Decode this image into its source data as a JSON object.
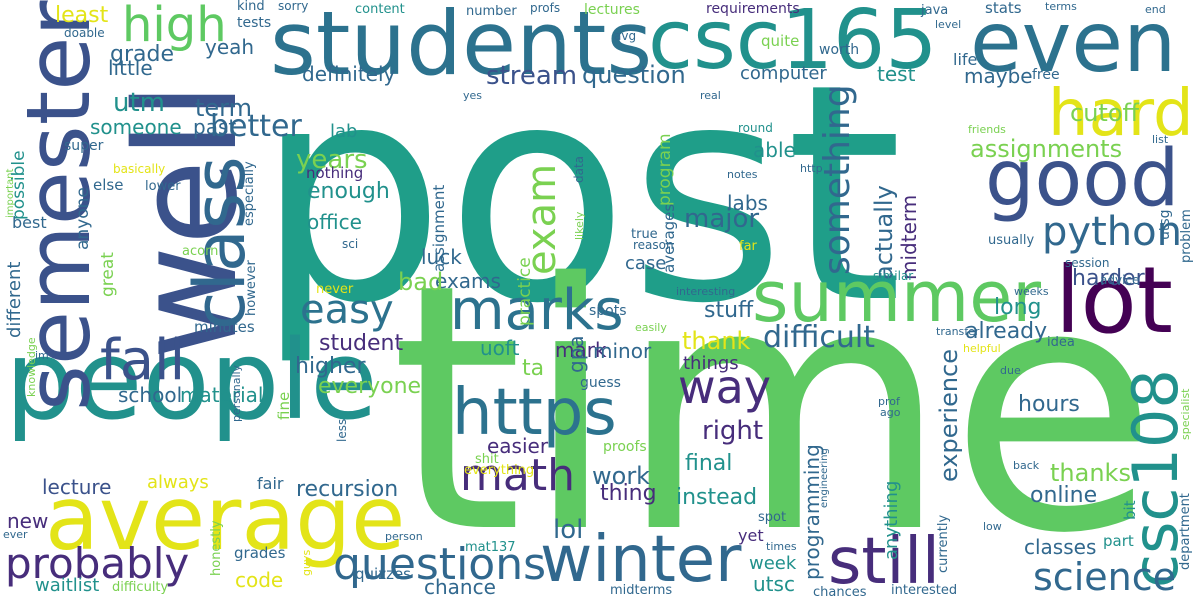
{
  "palette": {
    "yellow": "#e3e418",
    "lime": "#7ad151",
    "green": "#5ec962",
    "teal": "#21918c",
    "teal_dark": "#1f9e89",
    "blue": "#2c728e",
    "blue_dark": "#31688e",
    "indigo": "#3b528b",
    "purple": "#472d7b",
    "dark_purple": "#440154",
    "light_green": "#b5de2b"
  },
  "words": [
    {
      "text": "post",
      "color": "#1f9e89"
    },
    {
      "text": "time",
      "color": "#5ec962"
    },
    {
      "text": "well",
      "color": "#3b528b"
    },
    {
      "text": "students",
      "color": "#2c728e"
    },
    {
      "text": "csc165",
      "color": "#21918c"
    },
    {
      "text": "even",
      "color": "#2c728e"
    },
    {
      "text": "people",
      "color": "#21918c"
    },
    {
      "text": "average",
      "color": "#e3e418"
    },
    {
      "text": "semester",
      "color": "#3b528b"
    },
    {
      "text": "class",
      "color": "#31688e"
    },
    {
      "text": "good",
      "color": "#3b528b"
    },
    {
      "text": "lot",
      "color": "#440154"
    },
    {
      "text": "summer",
      "color": "#5ec962"
    },
    {
      "text": "hard",
      "color": "#e3e418"
    },
    {
      "text": "marks",
      "color": "#2c728e"
    },
    {
      "text": "fall",
      "color": "#3b528b"
    },
    {
      "text": "high",
      "color": "#5ec962"
    },
    {
      "text": "https",
      "color": "#2c728e"
    },
    {
      "text": "winter",
      "color": "#31688e"
    },
    {
      "text": "still",
      "color": "#472d7b"
    },
    {
      "text": "csc108",
      "color": "#21918c"
    },
    {
      "text": "probably",
      "color": "#472d7b"
    },
    {
      "text": "questions",
      "color": "#31688e"
    },
    {
      "text": "science",
      "color": "#31688e"
    },
    {
      "text": "math",
      "color": "#472d7b"
    },
    {
      "text": "way",
      "color": "#472d7b"
    },
    {
      "text": "easy",
      "color": "#2c728e"
    },
    {
      "text": "python",
      "color": "#31688e"
    },
    {
      "text": "exam",
      "color": "#7ad151"
    },
    {
      "text": "something",
      "color": "#31688e"
    },
    {
      "text": "difficult",
      "color": "#31688e"
    },
    {
      "text": "stream",
      "color": "#3b528b"
    },
    {
      "text": "question",
      "color": "#31688e"
    },
    {
      "text": "better",
      "color": "#31688e"
    },
    {
      "text": "least",
      "color": "#e3e418"
    },
    {
      "text": "grade",
      "color": "#31688e"
    },
    {
      "text": "little",
      "color": "#31688e"
    },
    {
      "text": "utm",
      "color": "#21918c"
    },
    {
      "text": "term",
      "color": "#31688e"
    },
    {
      "text": "someone",
      "color": "#21918c"
    },
    {
      "text": "past",
      "color": "#31688e"
    },
    {
      "text": "definitely",
      "color": "#31688e"
    },
    {
      "text": "yeah",
      "color": "#31688e"
    },
    {
      "text": "computer",
      "color": "#31688e"
    },
    {
      "text": "test",
      "color": "#21918c"
    },
    {
      "text": "maybe",
      "color": "#31688e"
    },
    {
      "text": "cutoff",
      "color": "#7ad151"
    },
    {
      "text": "assignments",
      "color": "#7ad151"
    },
    {
      "text": "years",
      "color": "#7ad151"
    },
    {
      "text": "enough",
      "color": "#21918c"
    },
    {
      "text": "office",
      "color": "#21918c"
    },
    {
      "text": "lab",
      "color": "#21918c"
    },
    {
      "text": "nothing",
      "color": "#472d7b"
    },
    {
      "text": "able",
      "color": "#21918c"
    },
    {
      "text": "labs",
      "color": "#31688e"
    },
    {
      "text": "major",
      "color": "#31688e"
    },
    {
      "text": "actually",
      "color": "#31688e"
    },
    {
      "text": "midterm",
      "color": "#472d7b"
    },
    {
      "text": "experience",
      "color": "#31688e"
    },
    {
      "text": "harder",
      "color": "#3b528b"
    },
    {
      "text": "long",
      "color": "#21918c"
    },
    {
      "text": "already",
      "color": "#31688e"
    },
    {
      "text": "hours",
      "color": "#31688e"
    },
    {
      "text": "thanks",
      "color": "#7ad151"
    },
    {
      "text": "online",
      "color": "#31688e"
    },
    {
      "text": "classes",
      "color": "#31688e"
    },
    {
      "text": "right",
      "color": "#472d7b"
    },
    {
      "text": "final",
      "color": "#21918c"
    },
    {
      "text": "instead",
      "color": "#21918c"
    },
    {
      "text": "thank",
      "color": "#e3e418"
    },
    {
      "text": "stuff",
      "color": "#31688e"
    },
    {
      "text": "things",
      "color": "#472d7b"
    },
    {
      "text": "work",
      "color": "#31688e"
    },
    {
      "text": "thing",
      "color": "#472d7b"
    },
    {
      "text": "lol",
      "color": "#31688e"
    },
    {
      "text": "code",
      "color": "#e3e418"
    },
    {
      "text": "chance",
      "color": "#31688e"
    },
    {
      "text": "recursion",
      "color": "#31688e"
    },
    {
      "text": "easier",
      "color": "#472d7b"
    },
    {
      "text": "exams",
      "color": "#31688e"
    },
    {
      "text": "luck",
      "color": "#31688e"
    },
    {
      "text": "bad",
      "color": "#7ad151"
    },
    {
      "text": "higher",
      "color": "#31688e"
    },
    {
      "text": "student",
      "color": "#472d7b"
    },
    {
      "text": "everyone",
      "color": "#7ad151"
    },
    {
      "text": "school",
      "color": "#31688e"
    },
    {
      "text": "material",
      "color": "#21918c"
    },
    {
      "text": "always",
      "color": "#e3e418"
    },
    {
      "text": "lecture",
      "color": "#3b528b"
    },
    {
      "text": "new",
      "color": "#472d7b"
    },
    {
      "text": "uoft",
      "color": "#21918c"
    },
    {
      "text": "mark",
      "color": "#472d7b"
    },
    {
      "text": "ta",
      "color": "#7ad151"
    },
    {
      "text": "gpa",
      "color": "#31688e"
    },
    {
      "text": "minor",
      "color": "#31688e"
    },
    {
      "text": "case",
      "color": "#31688e"
    },
    {
      "text": "week",
      "color": "#21918c"
    },
    {
      "text": "utsc",
      "color": "#21918c"
    },
    {
      "text": "quizzes",
      "color": "#31688e"
    },
    {
      "text": "waitlist",
      "color": "#21918c"
    },
    {
      "text": "grades",
      "color": "#31688e"
    },
    {
      "text": "minutes",
      "color": "#31688e"
    },
    {
      "text": "fair",
      "color": "#31688e"
    },
    {
      "text": "yet",
      "color": "#472d7b"
    },
    {
      "text": "part",
      "color": "#21918c"
    },
    {
      "text": "kind",
      "color": "#31688e"
    },
    {
      "text": "sorry",
      "color": "#31688e"
    },
    {
      "text": "tests",
      "color": "#31688e"
    },
    {
      "text": "content",
      "color": "#21918c"
    },
    {
      "text": "number",
      "color": "#31688e"
    },
    {
      "text": "profs",
      "color": "#31688e"
    },
    {
      "text": "lectures",
      "color": "#7ad151"
    },
    {
      "text": "requirements",
      "color": "#472d7b"
    },
    {
      "text": "avg",
      "color": "#31688e"
    },
    {
      "text": "java",
      "color": "#31688e"
    },
    {
      "text": "stats",
      "color": "#31688e"
    },
    {
      "text": "terms",
      "color": "#31688e"
    },
    {
      "text": "end",
      "color": "#31688e"
    },
    {
      "text": "level",
      "color": "#31688e"
    },
    {
      "text": "quite",
      "color": "#7ad151"
    },
    {
      "text": "worth",
      "color": "#31688e"
    },
    {
      "text": "life",
      "color": "#31688e"
    },
    {
      "text": "free",
      "color": "#31688e"
    },
    {
      "text": "round",
      "color": "#21918c"
    },
    {
      "text": "friends",
      "color": "#7ad151"
    },
    {
      "text": "list",
      "color": "#31688e"
    },
    {
      "text": "yes",
      "color": "#31688e"
    },
    {
      "text": "real",
      "color": "#31688e"
    },
    {
      "text": "super",
      "color": "#31688e"
    },
    {
      "text": "doable",
      "color": "#31688e"
    },
    {
      "text": "basically",
      "color": "#e3e418"
    },
    {
      "text": "important",
      "color": "#7ad151"
    },
    {
      "text": "else",
      "color": "#31688e"
    },
    {
      "text": "lower",
      "color": "#31688e"
    },
    {
      "text": "best",
      "color": "#31688e"
    },
    {
      "text": "anyone",
      "color": "#31688e"
    },
    {
      "text": "different",
      "color": "#31688e"
    },
    {
      "text": "possible",
      "color": "#21918c"
    },
    {
      "text": "great",
      "color": "#7ad151"
    },
    {
      "text": "sci",
      "color": "#31688e"
    },
    {
      "text": "acorn",
      "color": "#7ad151"
    },
    {
      "text": "never",
      "color": "#e3e418"
    },
    {
      "text": "however",
      "color": "#31688e"
    },
    {
      "text": "especially",
      "color": "#31688e"
    },
    {
      "text": "data",
      "color": "#31688e"
    },
    {
      "text": "likely",
      "color": "#7ad151"
    },
    {
      "text": "practice",
      "color": "#7ad151"
    },
    {
      "text": "program",
      "color": "#7ad151"
    },
    {
      "text": "averages",
      "color": "#31688e"
    },
    {
      "text": "assignment",
      "color": "#31688e"
    },
    {
      "text": "http",
      "color": "#31688e"
    },
    {
      "text": "notes",
      "color": "#31688e"
    },
    {
      "text": "true",
      "color": "#31688e"
    },
    {
      "text": "reason",
      "color": "#31688e"
    },
    {
      "text": "far",
      "color": "#e3e418"
    },
    {
      "text": "usually",
      "color": "#31688e"
    },
    {
      "text": "utsg",
      "color": "#31688e"
    },
    {
      "text": "problem",
      "color": "#31688e"
    },
    {
      "text": "session",
      "color": "#31688e"
    },
    {
      "text": "similar",
      "color": "#21918c"
    },
    {
      "text": "advice",
      "color": "#31688e"
    },
    {
      "text": "weeks",
      "color": "#31688e"
    },
    {
      "text": "interesting",
      "color": "#31688e"
    },
    {
      "text": "spots",
      "color": "#31688e"
    },
    {
      "text": "easily",
      "color": "#7ad151"
    },
    {
      "text": "transfer",
      "color": "#31688e"
    },
    {
      "text": "helpful",
      "color": "#e3e418"
    },
    {
      "text": "idea",
      "color": "#31688e"
    },
    {
      "text": "due",
      "color": "#31688e"
    },
    {
      "text": "specialist",
      "color": "#7ad151"
    },
    {
      "text": "bit",
      "color": "#21918c"
    },
    {
      "text": "ago",
      "color": "#31688e"
    },
    {
      "text": "prof",
      "color": "#31688e"
    },
    {
      "text": "anything",
      "color": "#21918c"
    },
    {
      "text": "programming",
      "color": "#31688e"
    },
    {
      "text": "knowledge",
      "color": "#7ad151"
    },
    {
      "text": "im",
      "color": "#31688e"
    },
    {
      "text": "personally",
      "color": "#31688e"
    },
    {
      "text": "fine",
      "color": "#7ad151"
    },
    {
      "text": "less",
      "color": "#31688e"
    },
    {
      "text": "guess",
      "color": "#31688e"
    },
    {
      "text": "proofs",
      "color": "#7ad151"
    },
    {
      "text": "shit",
      "color": "#7ad151"
    },
    {
      "text": "everything",
      "color": "#e3e418"
    },
    {
      "text": "mat137",
      "color": "#21918c"
    },
    {
      "text": "back",
      "color": "#31688e"
    },
    {
      "text": "engineering",
      "color": "#31688e"
    },
    {
      "text": "spot",
      "color": "#31688e"
    },
    {
      "text": "times",
      "color": "#31688e"
    },
    {
      "text": "currently",
      "color": "#31688e"
    },
    {
      "text": "low",
      "color": "#31688e"
    },
    {
      "text": "department",
      "color": "#31688e"
    },
    {
      "text": "person",
      "color": "#31688e"
    },
    {
      "text": "ever",
      "color": "#31688e"
    },
    {
      "text": "honestly",
      "color": "#7ad151"
    },
    {
      "text": "guys",
      "color": "#e3e418"
    },
    {
      "text": "difficulty",
      "color": "#7ad151"
    },
    {
      "text": "midterms",
      "color": "#31688e"
    },
    {
      "text": "chances",
      "color": "#31688e"
    },
    {
      "text": "interested",
      "color": "#31688e"
    }
  ]
}
